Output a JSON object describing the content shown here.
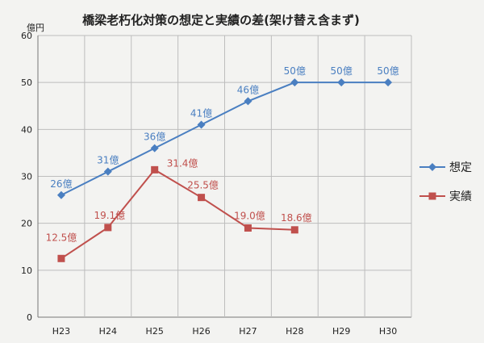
{
  "chart_data": {
    "type": "line",
    "title": "橋梁老朽化対策の想定と実績の差(架け替え含まず)",
    "ylabel": "億円",
    "xlabel": "",
    "categories": [
      "H23",
      "H24",
      "H25",
      "H26",
      "H27",
      "H28",
      "H29",
      "H30"
    ],
    "ylim": [
      0,
      60
    ],
    "yticks": [
      0,
      10,
      20,
      30,
      40,
      50,
      60
    ],
    "grid": true,
    "legend_position": "right",
    "series": [
      {
        "name": "想定",
        "color": "#4a7fc1",
        "marker": "diamond",
        "values": [
          26,
          31,
          36,
          41,
          46,
          50,
          50,
          50
        ],
        "labels": [
          "26億",
          "31億",
          "36億",
          "41億",
          "46億",
          "50億",
          "50億",
          "50億"
        ]
      },
      {
        "name": "実績",
        "color": "#c0504d",
        "marker": "square",
        "values": [
          12.5,
          19.1,
          31.4,
          25.5,
          19.0,
          18.6,
          null,
          null
        ],
        "labels": [
          "12.5億",
          "19.1億",
          "31.4億",
          "25.5億",
          "19.0億",
          "18.6億",
          null,
          null
        ]
      }
    ]
  }
}
